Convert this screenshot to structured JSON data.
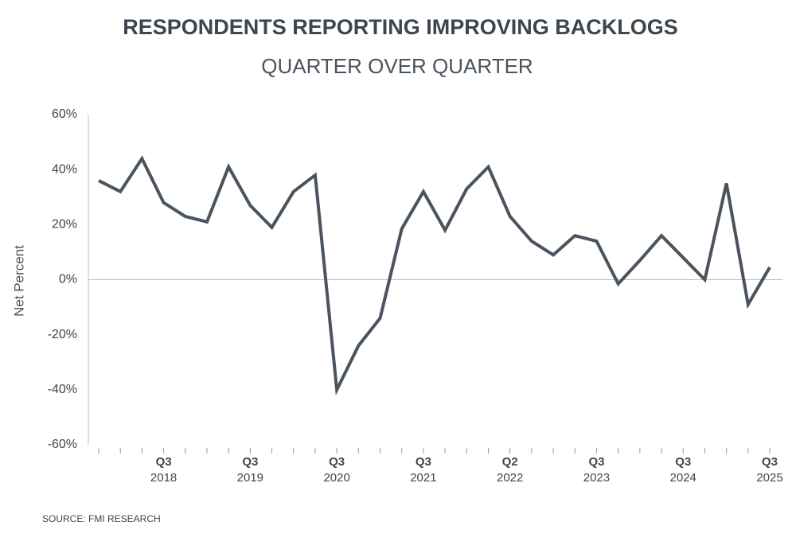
{
  "chart_data": {
    "type": "line",
    "title": "RESPONDENTS REPORTING IMPROVING BACKLOGS",
    "subtitle": "QUARTER OVER QUARTER",
    "y_label": "Net Percent",
    "source": "SOURCE: FMI RESEARCH",
    "categories": [
      null,
      null,
      null,
      "Q3",
      null,
      null,
      null,
      "Q3",
      null,
      null,
      null,
      "Q3",
      null,
      null,
      null,
      "Q3",
      null,
      null,
      null,
      "Q2",
      null,
      null,
      null,
      "Q3",
      null,
      null,
      null,
      "Q3",
      null,
      null,
      null,
      "Q3"
    ],
    "category_years": [
      null,
      null,
      null,
      "2018",
      null,
      null,
      null,
      "2019",
      null,
      null,
      null,
      "2020",
      null,
      null,
      null,
      "2021",
      null,
      null,
      null,
      "2022",
      null,
      null,
      null,
      "2023",
      null,
      null,
      null,
      "2024",
      null,
      null,
      null,
      "2025"
    ],
    "series": [
      {
        "name": "Net Percent",
        "color": "#4a545e",
        "values": [
          36,
          32,
          44,
          28,
          23,
          21,
          41,
          27,
          19,
          32,
          38,
          -40,
          -24,
          -14,
          18.5,
          32,
          18,
          33,
          41,
          23,
          14,
          9,
          16,
          14,
          -1.5,
          7,
          16,
          8,
          0,
          35,
          -9,
          4.5
        ]
      }
    ],
    "ylim": [
      -60,
      60
    ],
    "yticks": [
      {
        "value": -60,
        "label": "-60%"
      },
      {
        "value": -40,
        "label": "-40%"
      },
      {
        "value": -20,
        "label": "-20%"
      },
      {
        "value": 0,
        "label": "0%"
      },
      {
        "value": 20,
        "label": "20%"
      },
      {
        "value": 40,
        "label": "40%"
      },
      {
        "value": 60,
        "label": "60%"
      }
    ],
    "zero_line": true
  }
}
